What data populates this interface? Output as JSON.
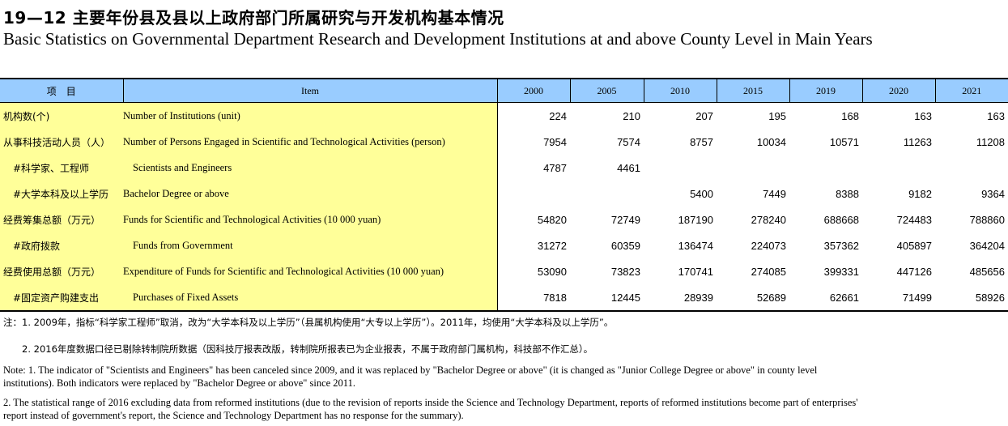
{
  "title_zh": "19—12  主要年份县及县以上政府部门所属研究与开发机构基本情况",
  "title_en": "Basic Statistics on Governmental Department Research and Development Institutions at and above County Level in Main Years",
  "header": {
    "item_zh": "项　目",
    "item_en": "Item",
    "years": [
      "2000",
      "2005",
      "2010",
      "2015",
      "2019",
      "2020",
      "2021"
    ]
  },
  "rows": [
    {
      "zh": "机构数(个)",
      "en": "Number of Institutions (unit)",
      "sub": false,
      "values": [
        "224",
        "210",
        "207",
        "195",
        "168",
        "163",
        "163"
      ]
    },
    {
      "zh": "从事科技活动人员（人）",
      "en": "Number of Persons Engaged in Scientific and Technological Activities (person)",
      "sub": false,
      "values": [
        "7954",
        "7574",
        "8757",
        "10034",
        "10571",
        "11263",
        "11208"
      ]
    },
    {
      "zh": "#科学家、工程师",
      "en": "Scientists and Engineers",
      "sub": true,
      "values": [
        "4787",
        "4461",
        "",
        "",
        "",
        "",
        ""
      ]
    },
    {
      "zh": "#大学本科及以上学历",
      "en": "Bachelor Degree or above",
      "sub": true,
      "en_flush": true,
      "values": [
        "",
        "",
        "5400",
        "7449",
        "8388",
        "9182",
        "9364"
      ]
    },
    {
      "zh": "经费筹集总额（万元）",
      "en": "Funds for Scientific and Technological Activities (10 000 yuan)",
      "sub": false,
      "values": [
        "54820",
        "72749",
        "187190",
        "278240",
        "688668",
        "724483",
        "788860"
      ]
    },
    {
      "zh": "#政府拨款",
      "en": "Funds from Government",
      "sub": true,
      "values": [
        "31272",
        "60359",
        "136474",
        "224073",
        "357362",
        "405897",
        "364204"
      ]
    },
    {
      "zh": "经费使用总额（万元）",
      "en": "Expenditure of Funds for Scientific and Technological Activities  (10 000 yuan)",
      "sub": false,
      "values": [
        "53090",
        "73823",
        "170741",
        "274085",
        "399331",
        "447126",
        "485656"
      ]
    },
    {
      "zh": "#固定资产购建支出",
      "en": "Purchases of Fixed Assets",
      "sub": true,
      "values": [
        "7818",
        "12445",
        "28939",
        "52689",
        "62661",
        "71499",
        "58926"
      ]
    }
  ],
  "notes_zh": [
    "注：1. 2009年，指标“科学家工程师”取消，改为“大学本科及以上学历”（县属机构使用“大专以上学历”）。2011年，均使用“大学本科及以上学历”。",
    "　　2. 2016年度数据口径已剔除转制院所数据（因科技厅报表改版，转制院所报表已为企业报表，不属于政府部门属机构，科技部不作汇总）。"
  ],
  "notes_en": [
    "Note: 1. The indicator of \"Scientists and Engineers\" has been canceled since 2009, and it was replaced by \"Bachelor Degree or above\" (it is changed as \"Junior College Degree or above\" in county level institutions). Both  indicators were replaced by \"Bachelor Degree or above\" since 2011.",
    "        2. The statistical range of 2016 excluding data from reformed institutions (due to the revision of reports inside the Science and Technology Department, reports of  reformed institutions become part of enterprises' report instead of government's report, the  Science and Technology Department has no response for  the summary)."
  ]
}
